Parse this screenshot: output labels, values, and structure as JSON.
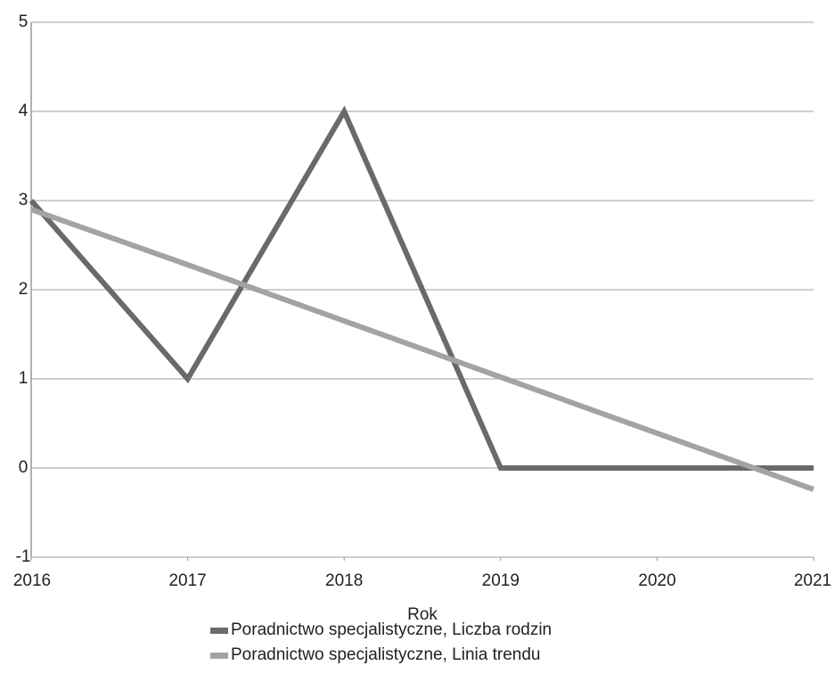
{
  "chart_data": {
    "type": "line",
    "x": [
      2016,
      2017,
      2018,
      2019,
      2020,
      2021
    ],
    "xlim": [
      2016,
      2021
    ],
    "xticks": [
      2016,
      2017,
      2018,
      2019,
      2020,
      2021
    ],
    "ylim": [
      -1,
      5
    ],
    "yticks": [
      -1,
      0,
      1,
      2,
      3,
      4,
      5
    ],
    "x_label": "Rok",
    "grid": true,
    "legend": "bottom",
    "series": [
      {
        "name": "Poradnictwo specjalistyczne, Liczba rodzin",
        "color": "#6a6a6a",
        "values": [
          3,
          1,
          4,
          0,
          0,
          0
        ]
      },
      {
        "name": "Poradnictwo specjalistyczne, Linia trendu",
        "color": "#a3a3a3",
        "values": [
          2.9,
          2.28,
          1.65,
          1.02,
          0.39,
          -0.24
        ]
      }
    ]
  }
}
